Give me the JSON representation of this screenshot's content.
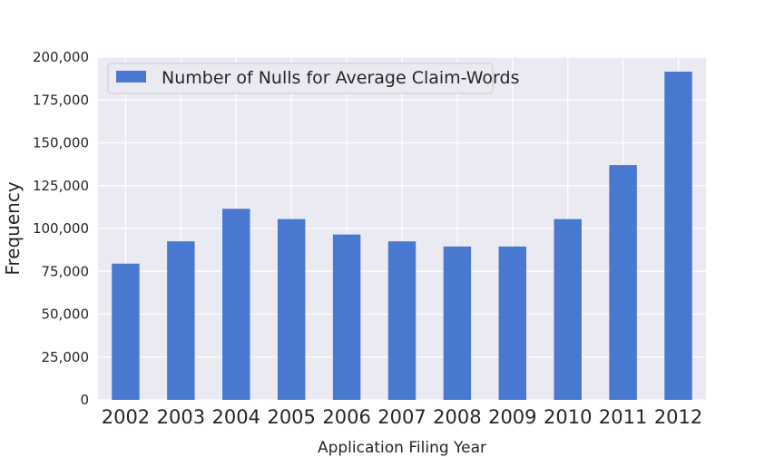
{
  "chart_data": {
    "type": "bar",
    "title": "",
    "xlabel": "Application Filing Year",
    "ylabel": "Frequency",
    "categories": [
      "2002",
      "2003",
      "2004",
      "2005",
      "2006",
      "2007",
      "2008",
      "2009",
      "2010",
      "2011",
      "2012"
    ],
    "series": [
      {
        "name": "Number of Nulls for Average Claim-Words",
        "values": [
          79500,
          92500,
          111500,
          105500,
          96500,
          92500,
          89500,
          89500,
          105500,
          137000,
          191500
        ]
      }
    ],
    "ylim": [
      0,
      200000
    ],
    "yticks": [
      0,
      25000,
      50000,
      75000,
      100000,
      125000,
      150000,
      175000,
      200000
    ],
    "ytick_labels": [
      "0",
      "25,000",
      "50,000",
      "75,000",
      "100,000",
      "125,000",
      "150,000",
      "175,000",
      "200,000"
    ],
    "grid": true,
    "legend_position": "top-left",
    "colors": {
      "bar": "#4878d0",
      "plot_background": "#eaeaf2",
      "grid": "#ffffff",
      "text": "#262626"
    }
  }
}
